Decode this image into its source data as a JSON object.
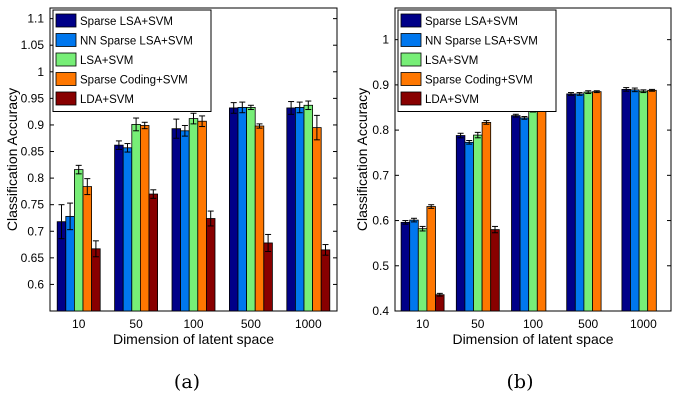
{
  "chart_data": [
    {
      "type": "bar",
      "caption": "(a)",
      "xlabel": "Dimension of latent space",
      "ylabel": "Classification Accuracy",
      "categories": [
        "10",
        "50",
        "100",
        "500",
        "1000"
      ],
      "ylim": [
        0.55,
        1.12
      ],
      "yticks": [
        "0.6",
        "0.65",
        "0.7",
        "0.75",
        "0.8",
        "0.85",
        "0.9",
        "0.95",
        "1",
        "1.05",
        "1.1"
      ],
      "legend_position": "top-left",
      "grid": false,
      "series": [
        {
          "name": "Sparse LSA+SVM",
          "color": "#000088",
          "values": [
            0.718,
            0.862,
            0.893,
            0.932,
            0.932
          ],
          "errors": [
            0.032,
            0.008,
            0.018,
            0.01,
            0.012
          ]
        },
        {
          "name": "NN Sparse LSA+SVM",
          "color": "#0077ee",
          "values": [
            0.728,
            0.857,
            0.889,
            0.933,
            0.933
          ],
          "errors": [
            0.025,
            0.008,
            0.01,
            0.01,
            0.01
          ]
        },
        {
          "name": "LSA+SVM",
          "color": "#77ee77",
          "values": [
            0.816,
            0.901,
            0.912,
            0.933,
            0.937
          ],
          "errors": [
            0.008,
            0.012,
            0.01,
            0.004,
            0.008
          ]
        },
        {
          "name": "Sparse Coding+SVM",
          "color": "#ff7700",
          "values": [
            0.784,
            0.899,
            0.907,
            0.898,
            0.895
          ],
          "errors": [
            0.015,
            0.006,
            0.01,
            0.004,
            0.023
          ]
        },
        {
          "name": "LDA+SVM",
          "color": "#880000",
          "values": [
            0.667,
            0.77,
            0.724,
            0.678,
            0.665
          ],
          "errors": [
            0.015,
            0.008,
            0.014,
            0.016,
            0.01
          ]
        }
      ]
    },
    {
      "type": "bar",
      "caption": "(b)",
      "xlabel": "Dimension of latent space",
      "ylabel": "Classification Accuracy",
      "categories": [
        "10",
        "50",
        "100",
        "500",
        "1000"
      ],
      "ylim": [
        0.4,
        1.07
      ],
      "yticks": [
        "0.4",
        "0.5",
        "0.6",
        "0.7",
        "0.8",
        "0.9",
        "1"
      ],
      "legend_position": "top-left",
      "grid": false,
      "series": [
        {
          "name": "Sparse LSA+SVM",
          "color": "#000088",
          "values": [
            0.596,
            0.788,
            0.832,
            0.88,
            0.89
          ],
          "errors": [
            0.004,
            0.005,
            0.003,
            0.003,
            0.004
          ]
        },
        {
          "name": "NN Sparse LSA+SVM",
          "color": "#0077ee",
          "values": [
            0.601,
            0.773,
            0.827,
            0.88,
            0.889
          ],
          "errors": [
            0.004,
            0.004,
            0.003,
            0.003,
            0.004
          ]
        },
        {
          "name": "LSA+SVM",
          "color": "#77ee77",
          "values": [
            0.582,
            0.789,
            0.844,
            0.884,
            0.886
          ],
          "errors": [
            0.005,
            0.006,
            0.004,
            0.003,
            0.003
          ]
        },
        {
          "name": "Sparse Coding+SVM",
          "color": "#ff7700",
          "values": [
            0.631,
            0.817,
            0.857,
            0.885,
            0.888
          ],
          "errors": [
            0.004,
            0.004,
            0.003,
            0.002,
            0.002
          ]
        },
        {
          "name": "LDA+SVM",
          "color": "#880000",
          "values": [
            0.436,
            0.58,
            null,
            null,
            null
          ],
          "errors": [
            0.003,
            0.007,
            null,
            null,
            null
          ]
        }
      ]
    }
  ]
}
